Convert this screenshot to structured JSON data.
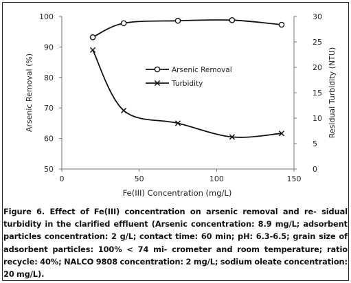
{
  "chart_data": {
    "type": "line",
    "x": [
      20,
      40,
      75,
      110,
      142
    ],
    "xlabel": "Fe(III) Concentration (mg/L)",
    "xlim": [
      0,
      150
    ],
    "xticks": [
      0,
      50,
      100,
      150
    ],
    "ylabel": "Arsenic Removal (%)",
    "ylim": [
      50,
      100
    ],
    "yticks": [
      50,
      60,
      70,
      80,
      90,
      100
    ],
    "y2label": "Residual Turbidity (NTU)",
    "y2lim": [
      0,
      30
    ],
    "y2ticks": [
      0,
      5,
      10,
      15,
      20,
      25,
      30
    ],
    "grid": false,
    "legend_position": "center",
    "series": [
      {
        "name": "Arsenic Removal",
        "axis": "left",
        "marker": "circle",
        "values": [
          93.2,
          97.8,
          98.6,
          98.8,
          97.3
        ]
      },
      {
        "name": "Turbidity",
        "axis": "right",
        "marker": "x",
        "values": [
          23.4,
          11.5,
          9.0,
          6.3,
          7.0
        ]
      }
    ]
  },
  "caption": {
    "lines": [
      "Figure 6. Effect of Fe(III) concentration on arsenic removal and re-",
      "sidual turbidity in the clarified effluent (Arsenic concentration: 8.9",
      "mg/L; adsorbent particles concentration: 2 g/L; contact time: 60",
      "min; pH: 6.3-6.5; grain size of adsorbent particles: 100% < 74 mi-",
      "crometer and room temperature; ratio recycle: 40%; NALCO 9808",
      "concentration: 2 mg/L;  sodium oleate concentration: 20 mg/L)."
    ]
  }
}
